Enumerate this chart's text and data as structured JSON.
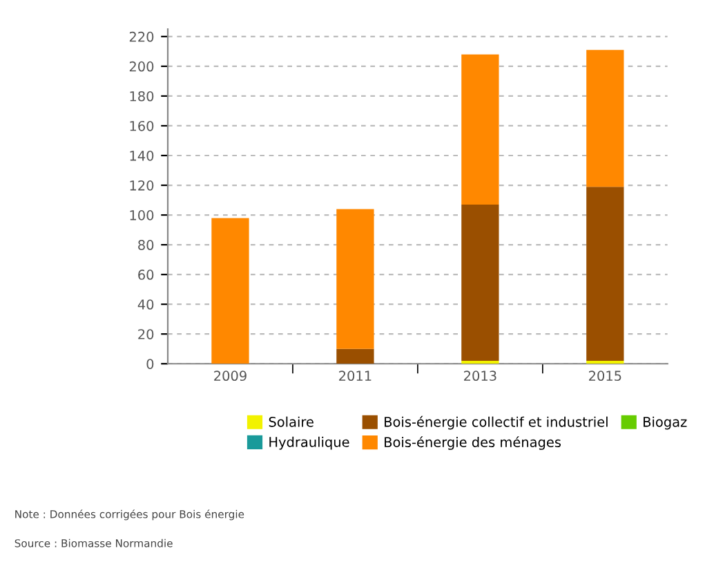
{
  "chart_data": {
    "type": "bar",
    "stacked": true,
    "categories": [
      "2009",
      "2011",
      "2013",
      "2015"
    ],
    "series": [
      {
        "name": "Solaire",
        "color": "#f2f200",
        "values": [
          0,
          0,
          2,
          2
        ]
      },
      {
        "name": "Hydraulique",
        "color": "#1a9a9a",
        "values": [
          0,
          0,
          0,
          0
        ]
      },
      {
        "name": "Bois-énergie collectif et industriel",
        "color": "#9a4f00",
        "values": [
          0,
          10,
          105,
          117
        ]
      },
      {
        "name": "Bois-énergie des ménages",
        "color": "#ff8800",
        "values": [
          98,
          94,
          101,
          92
        ]
      },
      {
        "name": "Biogaz",
        "color": "#66cc00",
        "values": [
          0,
          0,
          0,
          0
        ]
      }
    ],
    "ylim": [
      0,
      225
    ],
    "yticks": [
      0,
      20,
      40,
      60,
      80,
      100,
      120,
      140,
      160,
      180,
      200,
      220
    ],
    "grid": "y",
    "legend": "bottom",
    "annotations": [
      "Note : Données corrigées pour Bois énergie",
      "Source : Biomasse Normandie"
    ]
  }
}
